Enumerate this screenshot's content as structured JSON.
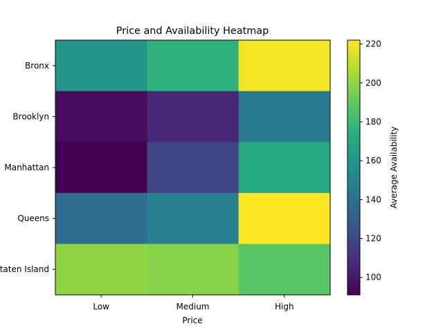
{
  "chart_data": {
    "type": "heatmap",
    "title": "Price and Availability Heatmap",
    "xlabel": "Price",
    "ylabel": "",
    "x_categories": [
      "Low",
      "Medium",
      "High"
    ],
    "y_categories": [
      "Bronx",
      "Brooklyn",
      "Manhattan",
      "Queens",
      "Staten Island"
    ],
    "values": [
      [
        160,
        175,
        220
      ],
      [
        95,
        105,
        145
      ],
      [
        91,
        118,
        170
      ],
      [
        138,
        148,
        222
      ],
      [
        200,
        198,
        188
      ]
    ],
    "colorbar": {
      "label": "Average Availability",
      "range": [
        91,
        222
      ],
      "ticks": [
        100,
        120,
        140,
        160,
        180,
        200,
        220
      ],
      "colormap": "viridis"
    }
  }
}
